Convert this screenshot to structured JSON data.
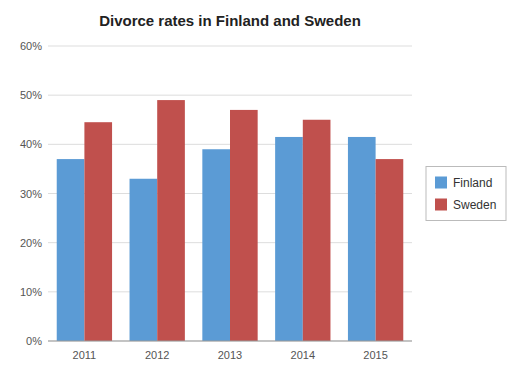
{
  "chart_data": {
    "type": "bar",
    "title": "Divorce rates in Finland and Sweden",
    "categories": [
      "2011",
      "2012",
      "2013",
      "2014",
      "2015"
    ],
    "series": [
      {
        "name": "Finland",
        "color": "#5B9BD5",
        "values": [
          37,
          33,
          39,
          41.5,
          41.5
        ]
      },
      {
        "name": "Sweden",
        "color": "#C0504D",
        "values": [
          44.5,
          49,
          47,
          45,
          37
        ]
      }
    ],
    "ylim": [
      0,
      60
    ],
    "yticks": [
      {
        "value": 0,
        "label": "0%"
      },
      {
        "value": 10,
        "label": "10%"
      },
      {
        "value": 20,
        "label": "20%"
      },
      {
        "value": 30,
        "label": "30%"
      },
      {
        "value": 40,
        "label": "40%"
      },
      {
        "value": 50,
        "label": "50%"
      },
      {
        "value": 60,
        "label": "60%"
      }
    ],
    "grid": true,
    "legend": "right"
  }
}
